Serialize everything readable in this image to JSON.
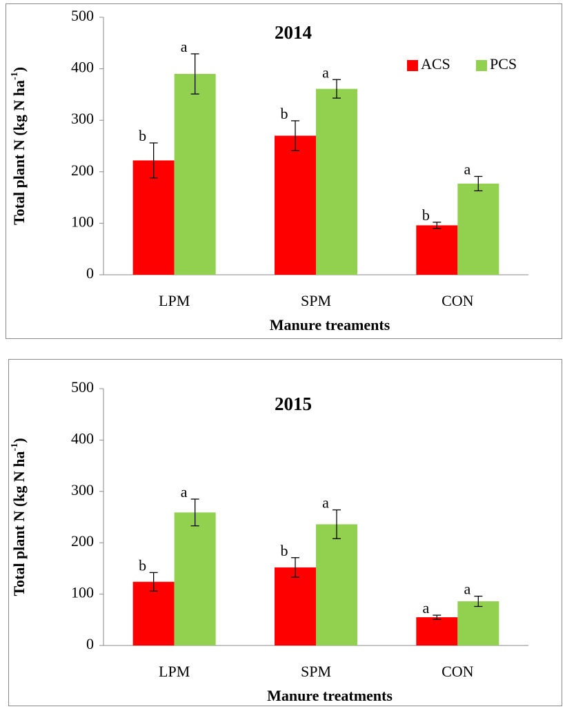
{
  "chart_data": [
    {
      "type": "bar",
      "title": "2014",
      "x_label": "Manure treaments",
      "y_label": {
        "text": "Total plant N (kg N ha",
        "superscript": "-1",
        "suffix": ")"
      },
      "categories": [
        "LPM",
        "SPM",
        "CON"
      ],
      "series": [
        {
          "name": "ACS",
          "color": "#ff0000",
          "values": [
            222,
            270,
            96
          ],
          "errors": [
            34,
            29,
            6
          ],
          "annotations": [
            "b",
            "b",
            "b"
          ]
        },
        {
          "name": "PCS",
          "color": "#92d050",
          "values": [
            390,
            361,
            177
          ],
          "errors": [
            39,
            18,
            14
          ],
          "annotations": [
            "a",
            "a",
            "a"
          ]
        }
      ],
      "ylim": [
        0,
        500
      ],
      "yticks": [
        0,
        100,
        200,
        300,
        400,
        500
      ],
      "legend": "upper right"
    },
    {
      "type": "bar",
      "title": "2015",
      "x_label": "Manure treatments",
      "y_label": {
        "text": "Total plant N (kg N ha",
        "superscript": "-1",
        "suffix": ")"
      },
      "categories": [
        "LPM",
        "SPM",
        "CON"
      ],
      "series": [
        {
          "name": "ACS",
          "color": "#ff0000",
          "values": [
            124,
            152,
            55
          ],
          "errors": [
            18,
            19,
            4
          ],
          "annotations": [
            "b",
            "b",
            "a"
          ]
        },
        {
          "name": "PCS",
          "color": "#92d050",
          "values": [
            259,
            236,
            86
          ],
          "errors": [
            26,
            28,
            10
          ],
          "annotations": [
            "a",
            "a",
            "a"
          ]
        }
      ],
      "ylim": [
        0,
        500
      ],
      "yticks": [
        0,
        100,
        200,
        300,
        400,
        500
      ],
      "legend": false
    }
  ]
}
